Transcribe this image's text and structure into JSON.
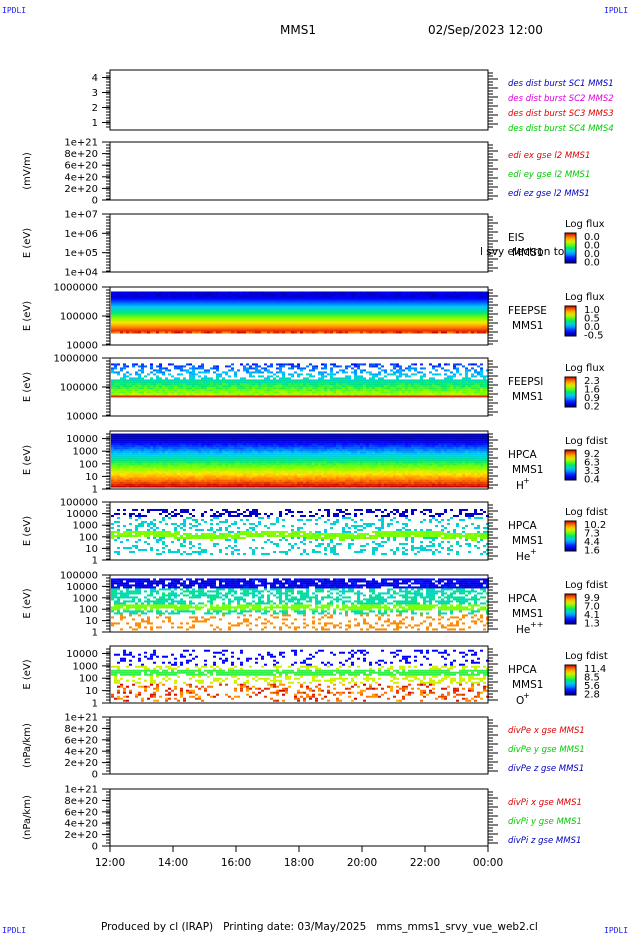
{
  "header": {
    "corner_label": "IPDLI",
    "title": "MMS1",
    "date": "02/Sep/2023 12:00"
  },
  "footer": {
    "text": "Produced by cl (IRAP)   Printing date: 03/May/2025   mms_mms1_srvy_vue_web2.cl"
  },
  "colors": {
    "mms1": "#0000c0",
    "mms2": "#e000e0",
    "mms3": "#e00000",
    "mms4": "#00cc00",
    "x_comp": "#e00000",
    "y_comp": "#00cc00",
    "z_comp": "#0000c0"
  },
  "chart_data": {
    "x_axis": {
      "ticks": [
        "12:00",
        "14:00",
        "16:00",
        "18:00",
        "20:00",
        "22:00",
        "00:00"
      ],
      "range": [
        "12:00",
        "00:00"
      ]
    },
    "panels": [
      {
        "id": "dist",
        "type": "line",
        "yticks": [
          "4",
          "3",
          "2",
          "1"
        ],
        "ylim": [
          0.5,
          4.5
        ],
        "ylabel": "",
        "legend": [
          {
            "text": "des dist burst SC1 MMS1",
            "color_key": "mms1"
          },
          {
            "text": "des dist burst SC2 MMS2",
            "color_key": "mms2"
          },
          {
            "text": "des dist burst SC3 MMS3",
            "color_key": "mms3"
          },
          {
            "text": "des dist burst SC4 MMS4",
            "color_key": "mms4"
          }
        ],
        "series": []
      },
      {
        "id": "edi",
        "type": "line",
        "yticks": [
          "1e+21",
          "8e+20",
          "6e+20",
          "4e+20",
          "2e+20",
          "0"
        ],
        "ylim": [
          0,
          1e+21
        ],
        "ylabel": "(mV/m)",
        "legend": [
          {
            "text": "edi ex gse l2 MMS1",
            "color_key": "x_comp"
          },
          {
            "text": "edi ey gse l2 MMS1",
            "color_key": "y_comp"
          },
          {
            "text": "edi ez gse l2 MMS1",
            "color_key": "z_comp"
          }
        ],
        "series": [
          {
            "values": [
              0,
              0
            ]
          }
        ]
      },
      {
        "id": "eis",
        "type": "heatmap",
        "yscale": "log",
        "yticks": [
          "1e+07",
          "1e+06",
          "1e+05",
          "1e+04"
        ],
        "ylim": [
          10000.0,
          10000000.0
        ],
        "ylabel": "E (eV)",
        "labels": [
          "EIS",
          "MMS1"
        ],
        "overlay_text": "l svy electron to",
        "colorbar": {
          "title": "Log flux",
          "ticks": [
            "0.0",
            "0.0",
            "0.0",
            "0.0"
          ]
        },
        "fill": {
          "lo": 0,
          "hi": 0,
          "density": 0
        }
      },
      {
        "id": "feepse",
        "type": "heatmap",
        "yscale": "log",
        "yticks": [
          "1000000",
          "100000",
          "10000"
        ],
        "ylim": [
          10000.0,
          1000000.0
        ],
        "ylabel": "E (eV)",
        "labels": [
          "FEEPSE",
          "MMS1"
        ],
        "colorbar": {
          "title": "Log flux",
          "ticks": [
            "1.0",
            "0.5",
            "0.0",
            "-0.5"
          ]
        },
        "fill": {
          "lo": 28000,
          "hi": 700000,
          "density": 1.0,
          "style": "feepse"
        }
      },
      {
        "id": "feepsi",
        "type": "heatmap",
        "yscale": "log",
        "yticks": [
          "1000000",
          "100000",
          "10000"
        ],
        "ylim": [
          10000.0,
          1000000.0
        ],
        "ylabel": "E (eV)",
        "labels": [
          "FEEPSI",
          "MMS1"
        ],
        "colorbar": {
          "title": "Log flux",
          "ticks": [
            "2.3",
            "1.6",
            "0.9",
            "0.2"
          ]
        },
        "fill": {
          "lo": 50000,
          "hi": 650000,
          "density": 0.9,
          "style": "feepsi"
        }
      },
      {
        "id": "hpca-h",
        "type": "heatmap",
        "yscale": "log",
        "yticks": [
          "10000",
          "1000",
          "100",
          "10",
          "1"
        ],
        "ylim": [
          1,
          40000
        ],
        "ylabel": "E (eV)",
        "labels": [
          "HPCA",
          "MMS1",
          "H",
          "+"
        ],
        "colorbar": {
          "title": "Log fdist",
          "ticks": [
            "9.2",
            "6.3",
            "3.3",
            "0.4"
          ]
        },
        "fill": {
          "lo": 1.5,
          "hi": 25000,
          "density": 1.0,
          "style": "hpca_h"
        }
      },
      {
        "id": "hpca-he",
        "type": "heatmap",
        "yscale": "log",
        "yticks": [
          "100000",
          "10000",
          "1000",
          "100",
          "10",
          "1"
        ],
        "ylim": [
          1,
          100000
        ],
        "ylabel": "E (eV)",
        "labels": [
          "HPCA",
          "MMS1",
          "He",
          "+"
        ],
        "colorbar": {
          "title": "Log fdist",
          "ticks": [
            "10.2",
            "7.3",
            "4.4",
            "1.6"
          ]
        },
        "fill": {
          "lo": 3,
          "hi": 25000,
          "density": 0.25,
          "style": "hpca_he"
        }
      },
      {
        "id": "hpca-hepp",
        "type": "heatmap",
        "yscale": "log",
        "yticks": [
          "100000",
          "10000",
          "1000",
          "100",
          "10",
          "1"
        ],
        "ylim": [
          1,
          100000
        ],
        "ylabel": "E (eV)",
        "labels": [
          "HPCA",
          "MMS1",
          "He",
          "++"
        ],
        "colorbar": {
          "title": "Log fdist",
          "ticks": [
            "9.9",
            "7.0",
            "4.1",
            "1.3"
          ]
        },
        "fill": {
          "lo": 2,
          "hi": 50000,
          "density": 0.55,
          "style": "hpca_hepp"
        }
      },
      {
        "id": "hpca-o",
        "type": "heatmap",
        "yscale": "log",
        "yticks": [
          "10000",
          "1000",
          "100",
          "10",
          "1"
        ],
        "ylim": [
          1,
          40000
        ],
        "ylabel": "E (eV)",
        "labels": [
          "HPCA",
          "MMS1",
          "O",
          "+"
        ],
        "colorbar": {
          "title": "Log fdist",
          "ticks": [
            "11.4",
            "8.5",
            "5.6",
            "2.8"
          ]
        },
        "fill": {
          "lo": 1.5,
          "hi": 20000,
          "density": 0.35,
          "style": "hpca_o"
        }
      },
      {
        "id": "divpe",
        "type": "line",
        "yticks": [
          "1e+21",
          "8e+20",
          "6e+20",
          "4e+20",
          "2e+20",
          "0"
        ],
        "ylim": [
          0,
          1e+21
        ],
        "ylabel": "(nPa/km)",
        "legend": [
          {
            "text": "divPe x gse MMS1",
            "color_key": "x_comp"
          },
          {
            "text": "divPe y gse MMS1",
            "color_key": "y_comp"
          },
          {
            "text": "divPe z gse MMS1",
            "color_key": "z_comp"
          }
        ],
        "series": [
          {
            "values": [
              0,
              0
            ]
          }
        ]
      },
      {
        "id": "divpi",
        "type": "line",
        "yticks": [
          "1e+21",
          "8e+20",
          "6e+20",
          "4e+20",
          "2e+20",
          "0"
        ],
        "ylim": [
          0,
          1e+21
        ],
        "ylabel": "(nPa/km)",
        "legend": [
          {
            "text": "divPi x gse MMS1",
            "color_key": "x_comp"
          },
          {
            "text": "divPi y gse MMS1",
            "color_key": "y_comp"
          },
          {
            "text": "divPi z gse MMS1",
            "color_key": "z_comp"
          }
        ],
        "series": [
          {
            "values": [
              0,
              0
            ]
          }
        ]
      }
    ]
  }
}
